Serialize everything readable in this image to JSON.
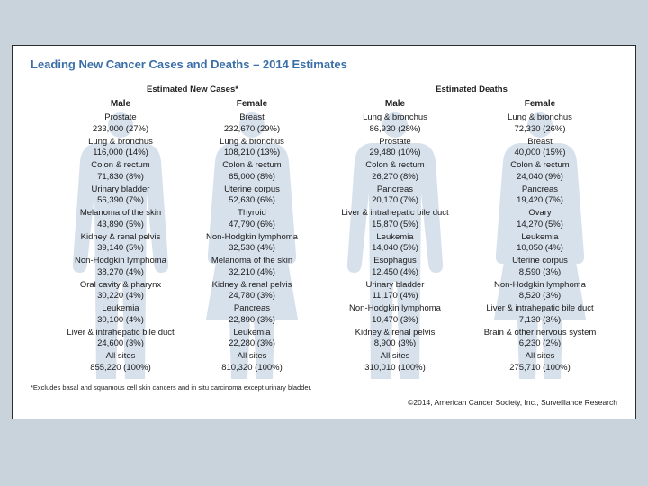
{
  "title": "Leading New Cancer Cases and Deaths – 2014 Estimates",
  "groups": {
    "new_cases": "Estimated New Cases*",
    "deaths": "Estimated Deaths"
  },
  "columns": [
    {
      "header": "Male",
      "entries": [
        {
          "site": "Prostate",
          "value": "233,000 (27%)"
        },
        {
          "site": "Lung & bronchus",
          "value": "116,000 (14%)"
        },
        {
          "site": "Colon & rectum",
          "value": "71,830 (8%)"
        },
        {
          "site": "Urinary bladder",
          "value": "56,390 (7%)"
        },
        {
          "site": "Melanoma of the skin",
          "value": "43,890 (5%)"
        },
        {
          "site": "Kidney & renal pelvis",
          "value": "39,140 (5%)"
        },
        {
          "site": "Non-Hodgkin lymphoma",
          "value": "38,270 (4%)"
        },
        {
          "site": "Oral cavity & pharynx",
          "value": "30,220 (4%)"
        },
        {
          "site": "Leukemia",
          "value": "30,100 (4%)"
        },
        {
          "site": "Liver & intrahepatic bile duct",
          "value": "24,600 (3%)"
        },
        {
          "site": "All sites",
          "value": "855,220 (100%)"
        }
      ]
    },
    {
      "header": "Female",
      "entries": [
        {
          "site": "Breast",
          "value": "232,670 (29%)"
        },
        {
          "site": "Lung & bronchus",
          "value": "108,210 (13%)"
        },
        {
          "site": "Colon & rectum",
          "value": "65,000 (8%)"
        },
        {
          "site": "Uterine corpus",
          "value": "52,630 (6%)"
        },
        {
          "site": "Thyroid",
          "value": "47,790 (6%)"
        },
        {
          "site": "Non-Hodgkin lymphoma",
          "value": "32,530 (4%)"
        },
        {
          "site": "Melanoma of the skin",
          "value": "32,210 (4%)"
        },
        {
          "site": "Kidney & renal pelvis",
          "value": "24,780 (3%)"
        },
        {
          "site": "Pancreas",
          "value": "22,890 (3%)"
        },
        {
          "site": "Leukemia",
          "value": "22,280 (3%)"
        },
        {
          "site": "All sites",
          "value": "810,320 (100%)"
        }
      ]
    },
    {
      "header": "Male",
      "entries": [
        {
          "site": "Lung & bronchus",
          "value": "86,930 (28%)"
        },
        {
          "site": "Prostate",
          "value": "29,480 (10%)"
        },
        {
          "site": "Colon & rectum",
          "value": "26,270 (8%)"
        },
        {
          "site": "Pancreas",
          "value": "20,170 (7%)"
        },
        {
          "site": "Liver & intrahepatic bile duct",
          "value": "15,870 (5%)"
        },
        {
          "site": "Leukemia",
          "value": "14,040 (5%)"
        },
        {
          "site": "Esophagus",
          "value": "12,450 (4%)"
        },
        {
          "site": "Urinary bladder",
          "value": "11,170 (4%)"
        },
        {
          "site": "Non-Hodgkin lymphoma",
          "value": "10,470 (3%)"
        },
        {
          "site": "Kidney & renal pelvis",
          "value": "8,900 (3%)"
        },
        {
          "site": "All sites",
          "value": "310,010 (100%)"
        }
      ]
    },
    {
      "header": "Female",
      "entries": [
        {
          "site": "Lung & bronchus",
          "value": "72,330 (26%)"
        },
        {
          "site": "Breast",
          "value": "40,000 (15%)"
        },
        {
          "site": "Colon & rectum",
          "value": "24,040 (9%)"
        },
        {
          "site": "Pancreas",
          "value": "19,420 (7%)"
        },
        {
          "site": "Ovary",
          "value": "14,270 (5%)"
        },
        {
          "site": "Leukemia",
          "value": "10,050 (4%)"
        },
        {
          "site": "Uterine corpus",
          "value": "8,590 (3%)"
        },
        {
          "site": "Non-Hodgkin lymphoma",
          "value": "8,520 (3%)"
        },
        {
          "site": "Liver & intrahepatic bile duct",
          "value": "7,130 (3%)"
        },
        {
          "site": "Brain & other nervous system",
          "value": "6,230 (2%)"
        },
        {
          "site": "All sites",
          "value": "275,710 (100%)"
        }
      ]
    }
  ],
  "footnote": "*Excludes basal and squamous cell skin cancers and in situ carcinoma except urinary bladder.",
  "copyright": "©2014, American Cancer Society, Inc., Surveillance Research",
  "colors": {
    "title": "#3b6fa8",
    "silhouette": "#d7e1ec",
    "background": "#c9d3db"
  }
}
